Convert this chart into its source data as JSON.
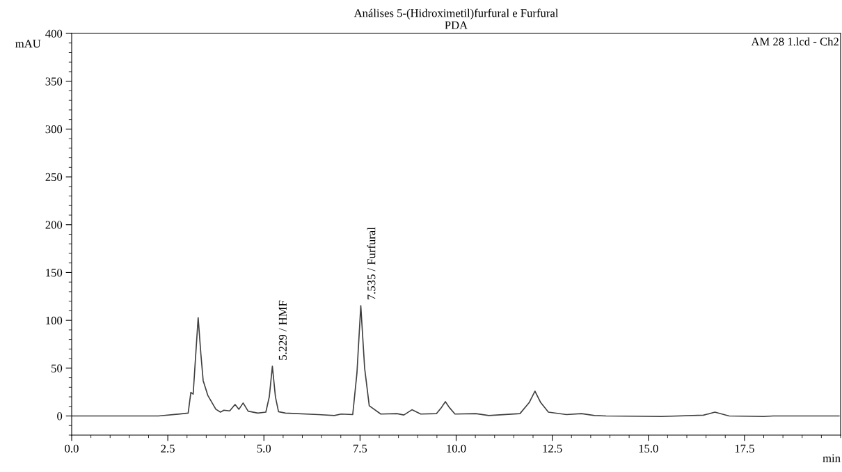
{
  "chart_data": {
    "type": "line",
    "title": "Análises 5-(Hidroximetil)furfural e Furfural",
    "subtitle": "PDA",
    "xlabel": "min",
    "ylabel": "mAU",
    "xlim": [
      0,
      20
    ],
    "ylim": [
      -20,
      400
    ],
    "xticks": [
      {
        "value": 0,
        "label": "0.0"
      },
      2.5,
      {
        "value": 5,
        "label": "5.0"
      },
      7.5,
      {
        "value": 10,
        "label": "10.0"
      },
      12.5,
      {
        "value": 15,
        "label": "15.0"
      },
      17.5
    ],
    "yticks": [
      0,
      50,
      100,
      150,
      200,
      250,
      300,
      350,
      400
    ],
    "grid": false,
    "legend": false,
    "marker": "none",
    "line_style": "solid",
    "annotations": [
      "AM 28 1.lcd - Ch2",
      {
        "text": "5.229 / HMF",
        "x": 5.229,
        "y": 52
      },
      {
        "text": "7.535 / Furfural",
        "x": 7.535,
        "y": 115
      }
    ],
    "series": [
      {
        "color": "#404040",
        "x": [
          0,
          2.26,
          2.72,
          3.03,
          3.1,
          3.16,
          3.22,
          3.29,
          3.36,
          3.42,
          3.54,
          3.75,
          3.87,
          3.96,
          4.11,
          4.25,
          4.35,
          4.46,
          4.59,
          4.84,
          5.05,
          5.14,
          5.22,
          5.3,
          5.38,
          5.56,
          6.41,
          6.83,
          7.01,
          7.31,
          7.42,
          7.52,
          7.62,
          7.74,
          8.04,
          8.46,
          8.64,
          8.85,
          9.08,
          9.49,
          9.62,
          9.72,
          9.82,
          9.97,
          10.51,
          10.85,
          11.66,
          11.9,
          12.05,
          12.2,
          12.4,
          12.87,
          13.26,
          13.6,
          13.9,
          15.34,
          16.43,
          16.73,
          17.1,
          18.0,
          18.25,
          19.96
        ],
        "values": [
          0,
          0,
          1.7,
          3,
          24.7,
          22.8,
          60,
          102.8,
          65,
          37,
          21.6,
          7,
          4,
          6,
          5.3,
          12,
          7,
          13.6,
          5,
          3,
          4,
          20,
          52,
          20,
          4.5,
          3,
          1.5,
          0.5,
          2,
          1.5,
          45,
          115.4,
          50,
          10.7,
          2,
          2.5,
          1,
          6.5,
          2,
          2.5,
          9,
          15,
          9,
          2,
          2.5,
          0.5,
          2.5,
          14,
          26,
          14,
          4,
          1.5,
          2.5,
          0.5,
          0,
          -0.5,
          0.8,
          4,
          0,
          -0.5,
          0,
          0
        ]
      }
    ]
  }
}
